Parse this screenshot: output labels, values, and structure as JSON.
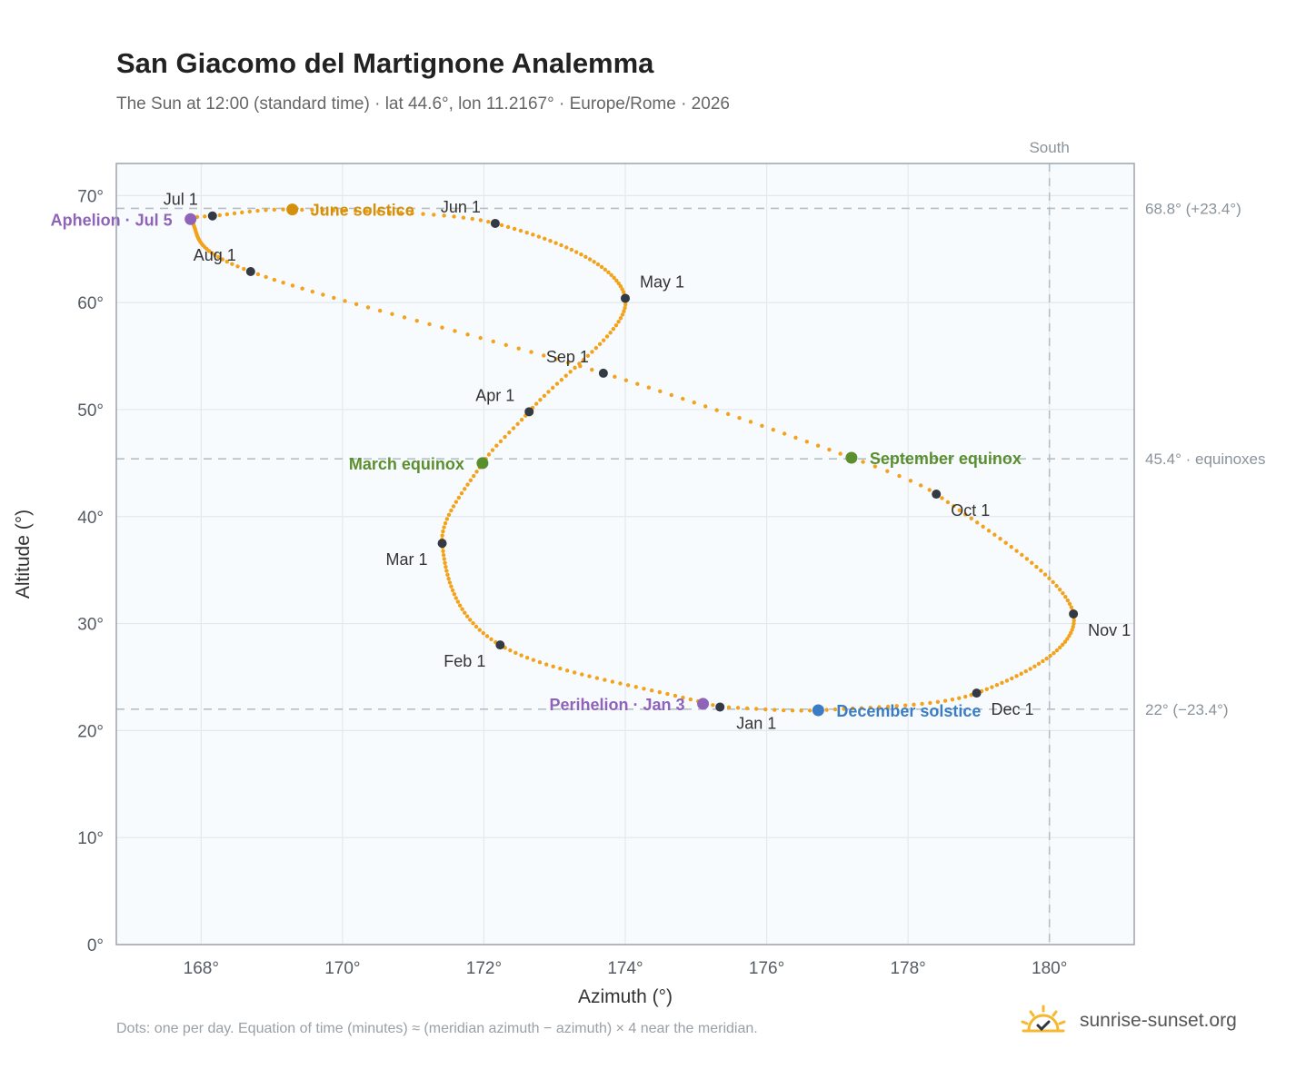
{
  "header": {
    "title": "San Giacomo del Martignone Analemma",
    "subtitle": "The Sun at 12:00 (standard time) · lat 44.6°, lon 11.2167° · Europe/Rome · 2026"
  },
  "footer": {
    "note": "Dots: one per day. Equation of time (minutes) ≈ (meridian azimuth − azimuth) × 4 near the meridian.",
    "brand": "sunrise-sunset.org",
    "brand_icon": "sun-logo-icon"
  },
  "colors": {
    "curve": "#f2a31b",
    "month_marker": "#333a44",
    "equinox": "#5a8f2e",
    "june_solstice": "#d4900a",
    "december_solstice": "#3b7dc4",
    "apsis": "#8e63b8",
    "plot_bg": "#f8fbfe",
    "grid": "#e2e8ee",
    "reference_line": "#b4bec6"
  },
  "chart_data": {
    "type": "scatter",
    "xlabel": "Azimuth (°)",
    "ylabel": "Altitude (°)",
    "xlim": [
      166.8,
      181.2
    ],
    "ylim": [
      0,
      73
    ],
    "xticks": [
      168,
      170,
      172,
      174,
      176,
      178,
      180
    ],
    "yticks": [
      0,
      10,
      20,
      30,
      40,
      50,
      60,
      70
    ],
    "x_tick_labels": [
      "168°",
      "170°",
      "172°",
      "174°",
      "176°",
      "178°",
      "180°"
    ],
    "y_tick_labels": [
      "0°",
      "10°",
      "20°",
      "30°",
      "40°",
      "50°",
      "60°",
      "70°"
    ],
    "grid": true,
    "meridian": {
      "azimuth": 180,
      "label": "South"
    },
    "reference_lines": [
      {
        "altitude": 68.8,
        "label": "68.8° (+23.4°)"
      },
      {
        "altitude": 45.4,
        "label": "45.4° · equinoxes"
      },
      {
        "altitude": 22.0,
        "label": "22° (−23.4°)"
      }
    ],
    "curve_knots": [
      {
        "day": 1,
        "azimuth": 175.34,
        "altitude": 22.2
      },
      {
        "day": 32,
        "azimuth": 172.23,
        "altitude": 28.0
      },
      {
        "day": 60,
        "azimuth": 171.41,
        "altitude": 37.5
      },
      {
        "day": 79,
        "azimuth": 171.98,
        "altitude": 45.0
      },
      {
        "day": 91,
        "azimuth": 172.64,
        "altitude": 49.8
      },
      {
        "day": 121,
        "azimuth": 174.0,
        "altitude": 60.4
      },
      {
        "day": 152,
        "azimuth": 172.16,
        "altitude": 67.4
      },
      {
        "day": 172,
        "azimuth": 169.29,
        "altitude": 68.7
      },
      {
        "day": 182,
        "azimuth": 168.16,
        "altitude": 68.1
      },
      {
        "day": 186,
        "azimuth": 167.85,
        "altitude": 67.8
      },
      {
        "day": 213,
        "azimuth": 168.7,
        "altitude": 62.9
      },
      {
        "day": 244,
        "azimuth": 173.69,
        "altitude": 53.4
      },
      {
        "day": 266,
        "azimuth": 177.2,
        "altitude": 45.5
      },
      {
        "day": 274,
        "azimuth": 178.4,
        "altitude": 42.1
      },
      {
        "day": 305,
        "azimuth": 180.34,
        "altitude": 30.9
      },
      {
        "day": 335,
        "azimuth": 178.97,
        "altitude": 23.5
      },
      {
        "day": 355,
        "azimuth": 176.73,
        "altitude": 21.9
      },
      {
        "day": 366,
        "azimuth": 175.34,
        "altitude": 22.2
      }
    ],
    "month_markers": [
      {
        "label": "Jan 1",
        "azimuth": 175.34,
        "altitude": 22.2,
        "anchor": "below"
      },
      {
        "label": "Feb 1",
        "azimuth": 172.23,
        "altitude": 28.0,
        "anchor": "below-left"
      },
      {
        "label": "Mar 1",
        "azimuth": 171.41,
        "altitude": 37.5,
        "anchor": "below-left"
      },
      {
        "label": "Apr 1",
        "azimuth": 172.64,
        "altitude": 49.8,
        "anchor": "above-left"
      },
      {
        "label": "May 1",
        "azimuth": 174.0,
        "altitude": 60.4,
        "anchor": "above-right"
      },
      {
        "label": "Jun 1",
        "azimuth": 172.16,
        "altitude": 67.4,
        "anchor": "above-left"
      },
      {
        "label": "Jul 1",
        "azimuth": 168.16,
        "altitude": 68.1,
        "anchor": "above-left"
      },
      {
        "label": "Aug 1",
        "azimuth": 168.7,
        "altitude": 62.9,
        "anchor": "above-left"
      },
      {
        "label": "Sep 1",
        "azimuth": 173.69,
        "altitude": 53.4,
        "anchor": "above-left"
      },
      {
        "label": "Oct 1",
        "azimuth": 178.4,
        "altitude": 42.1,
        "anchor": "below-right"
      },
      {
        "label": "Nov 1",
        "azimuth": 180.34,
        "altitude": 30.9,
        "anchor": "below-right"
      },
      {
        "label": "Dec 1",
        "azimuth": 178.97,
        "altitude": 23.5,
        "anchor": "below-right"
      }
    ],
    "events": [
      {
        "label": "March equinox",
        "azimuth": 171.98,
        "altitude": 45.0,
        "color": "#5a8f2e",
        "anchor": "left"
      },
      {
        "label": "June solstice",
        "azimuth": 169.29,
        "altitude": 68.7,
        "color": "#d4900a",
        "anchor": "right"
      },
      {
        "label": "September equinox",
        "azimuth": 177.2,
        "altitude": 45.5,
        "color": "#5a8f2e",
        "anchor": "right"
      },
      {
        "label": "December solstice",
        "azimuth": 176.73,
        "altitude": 21.9,
        "color": "#3b7dc4",
        "anchor": "right"
      },
      {
        "label": "Perihelion · Jan 3",
        "azimuth": 175.1,
        "altitude": 22.5,
        "color": "#8e63b8",
        "anchor": "left"
      },
      {
        "label": "Aphelion · Jul 5",
        "azimuth": 167.85,
        "altitude": 67.8,
        "color": "#8e63b8",
        "anchor": "left"
      }
    ]
  }
}
